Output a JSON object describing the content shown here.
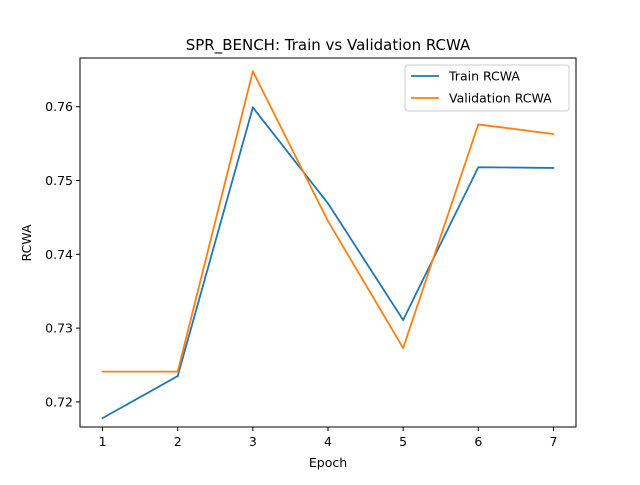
{
  "chart_data": {
    "type": "line",
    "title": "SPR_BENCH: Train vs Validation RCWA",
    "xlabel": "Epoch",
    "ylabel": "RCWA",
    "x": [
      1,
      2,
      3,
      4,
      5,
      6,
      7
    ],
    "xticks": [
      "1",
      "2",
      "3",
      "4",
      "5",
      "6",
      "7"
    ],
    "yticks": [
      "0.72",
      "0.73",
      "0.74",
      "0.75",
      "0.76"
    ],
    "xlim": [
      0.7,
      7.3
    ],
    "ylim": [
      0.7166,
      0.7666
    ],
    "grid": false,
    "legend_position": "top-right",
    "series": [
      {
        "name": "Train RCWA",
        "color": "#1f77b4",
        "values": [
          0.7178,
          0.7235,
          0.7599,
          0.7469,
          0.7311,
          0.7518,
          0.7517
        ]
      },
      {
        "name": "Validation RCWA",
        "color": "#ff7f0e",
        "values": [
          0.7241,
          0.7241,
          0.7648,
          0.7445,
          0.7273,
          0.7576,
          0.7563
        ]
      }
    ]
  }
}
